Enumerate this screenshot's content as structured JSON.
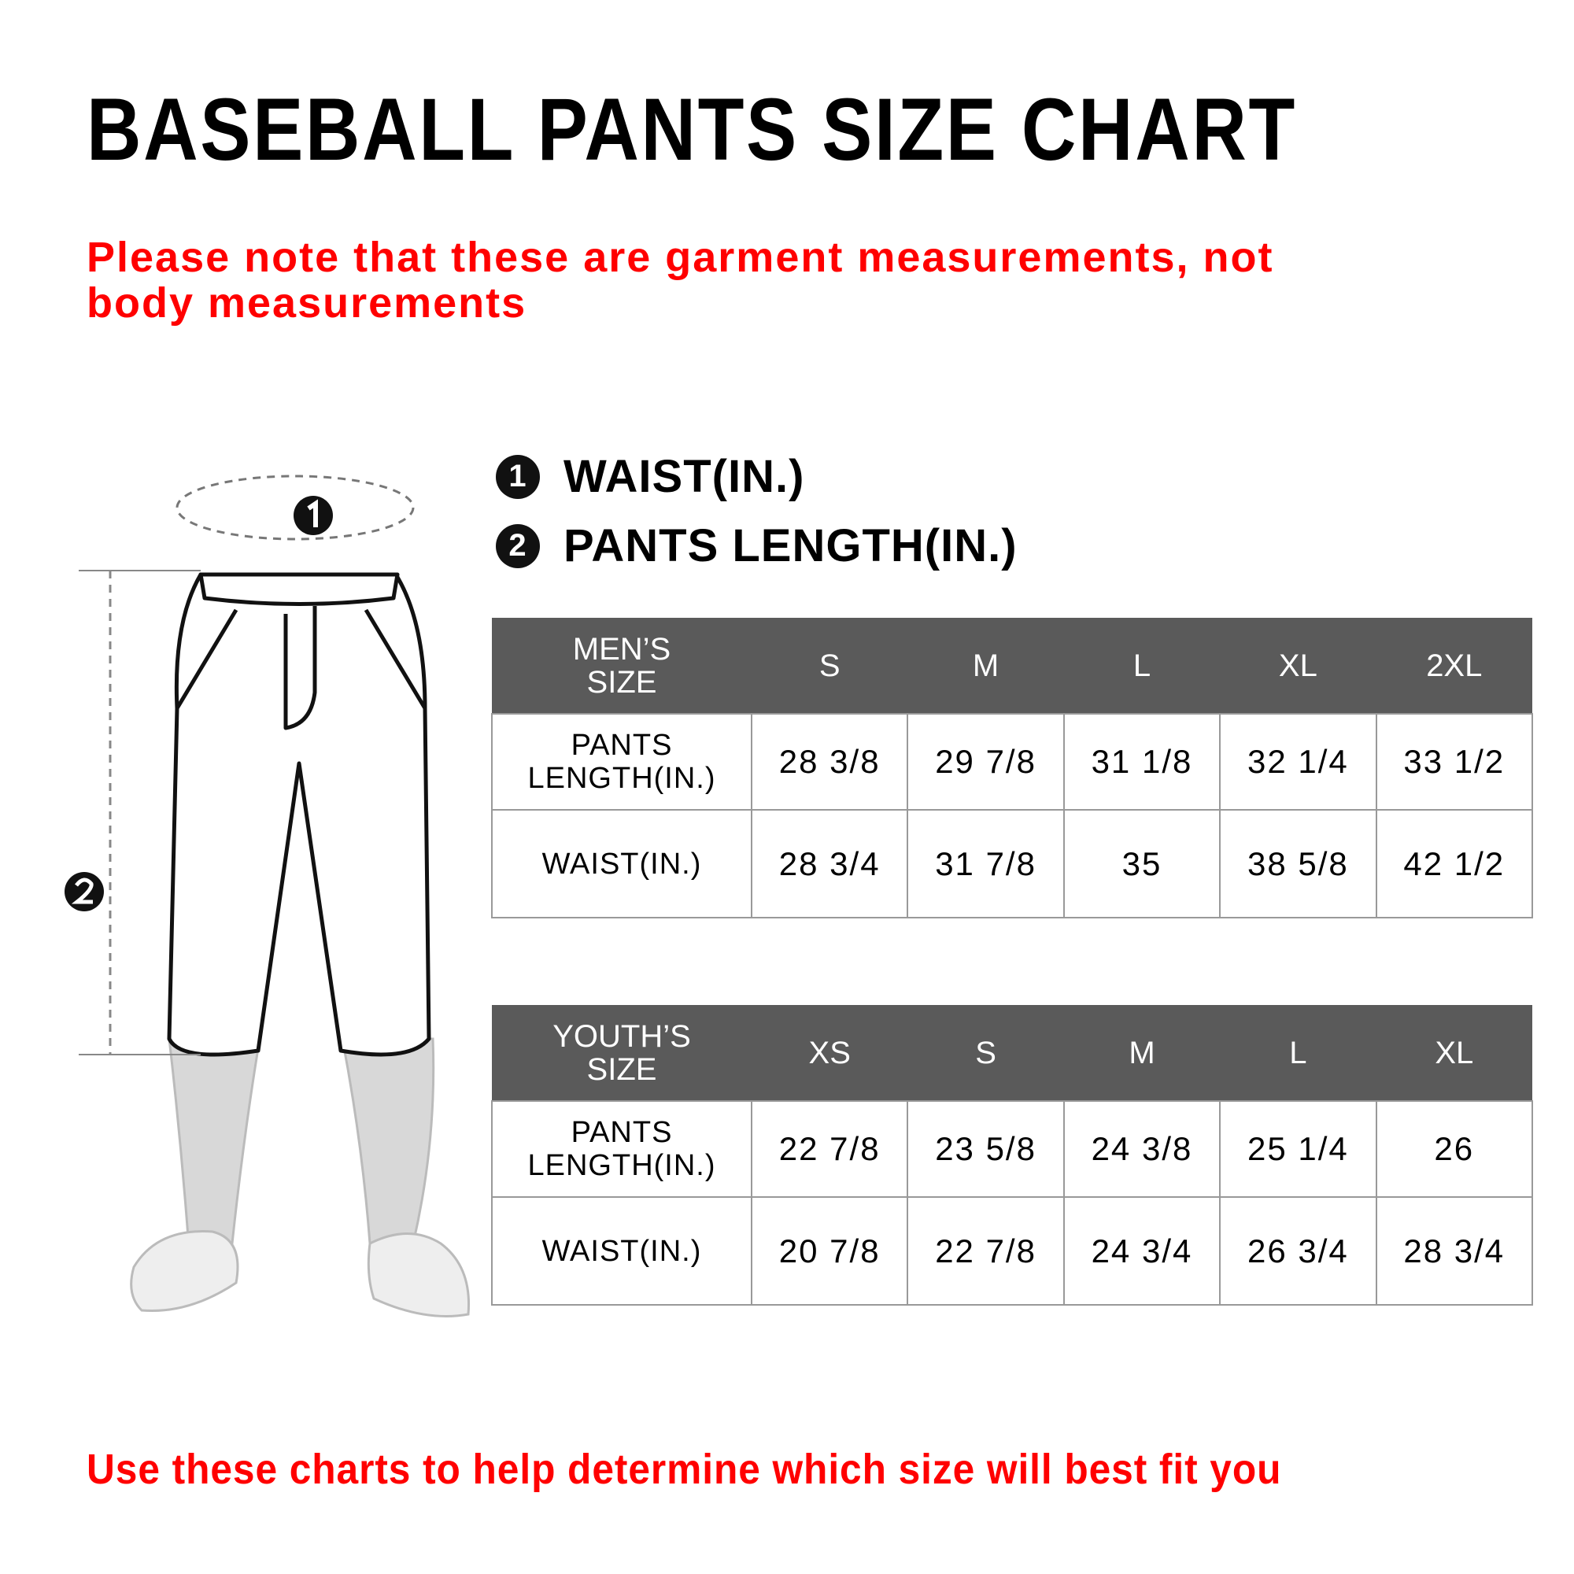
{
  "title": "BASEBALL PANTS SIZE CHART",
  "note": "Please note that these are garment measurements, not body measurements",
  "legend": [
    {
      "num": "1",
      "label": "WAIST(IN.)"
    },
    {
      "num": "2",
      "label": "PANTS LENGTH(IN.)"
    }
  ],
  "mens": {
    "header": [
      "MEN’S SIZE",
      "S",
      "M",
      "L",
      "XL",
      "2XL"
    ],
    "rows": [
      [
        "PANTS LENGTH(IN.)",
        "28 3/8",
        "29 7/8",
        "31 1/8",
        "32 1/4",
        "33 1/2"
      ],
      [
        "WAIST(IN.)",
        "28 3/4",
        "31 7/8",
        "35",
        "38 5/8",
        "42 1/2"
      ]
    ]
  },
  "youth": {
    "header": [
      "YOUTH’S SIZE",
      "XS",
      "S",
      "M",
      "L",
      "XL"
    ],
    "rows": [
      [
        "PANTS LENGTH(IN.)",
        "22 7/8",
        "23 5/8",
        "24 3/8",
        "25 1/4",
        "26"
      ],
      [
        "WAIST(IN.)",
        "20 7/8",
        "22 7/8",
        "24 3/4",
        "26 3/4",
        "28 3/4"
      ]
    ]
  },
  "footer": "Use these charts to help determine which size will best fit you",
  "colors": {
    "accent": "#ff0000",
    "header_bg": "#5a5a5a"
  }
}
